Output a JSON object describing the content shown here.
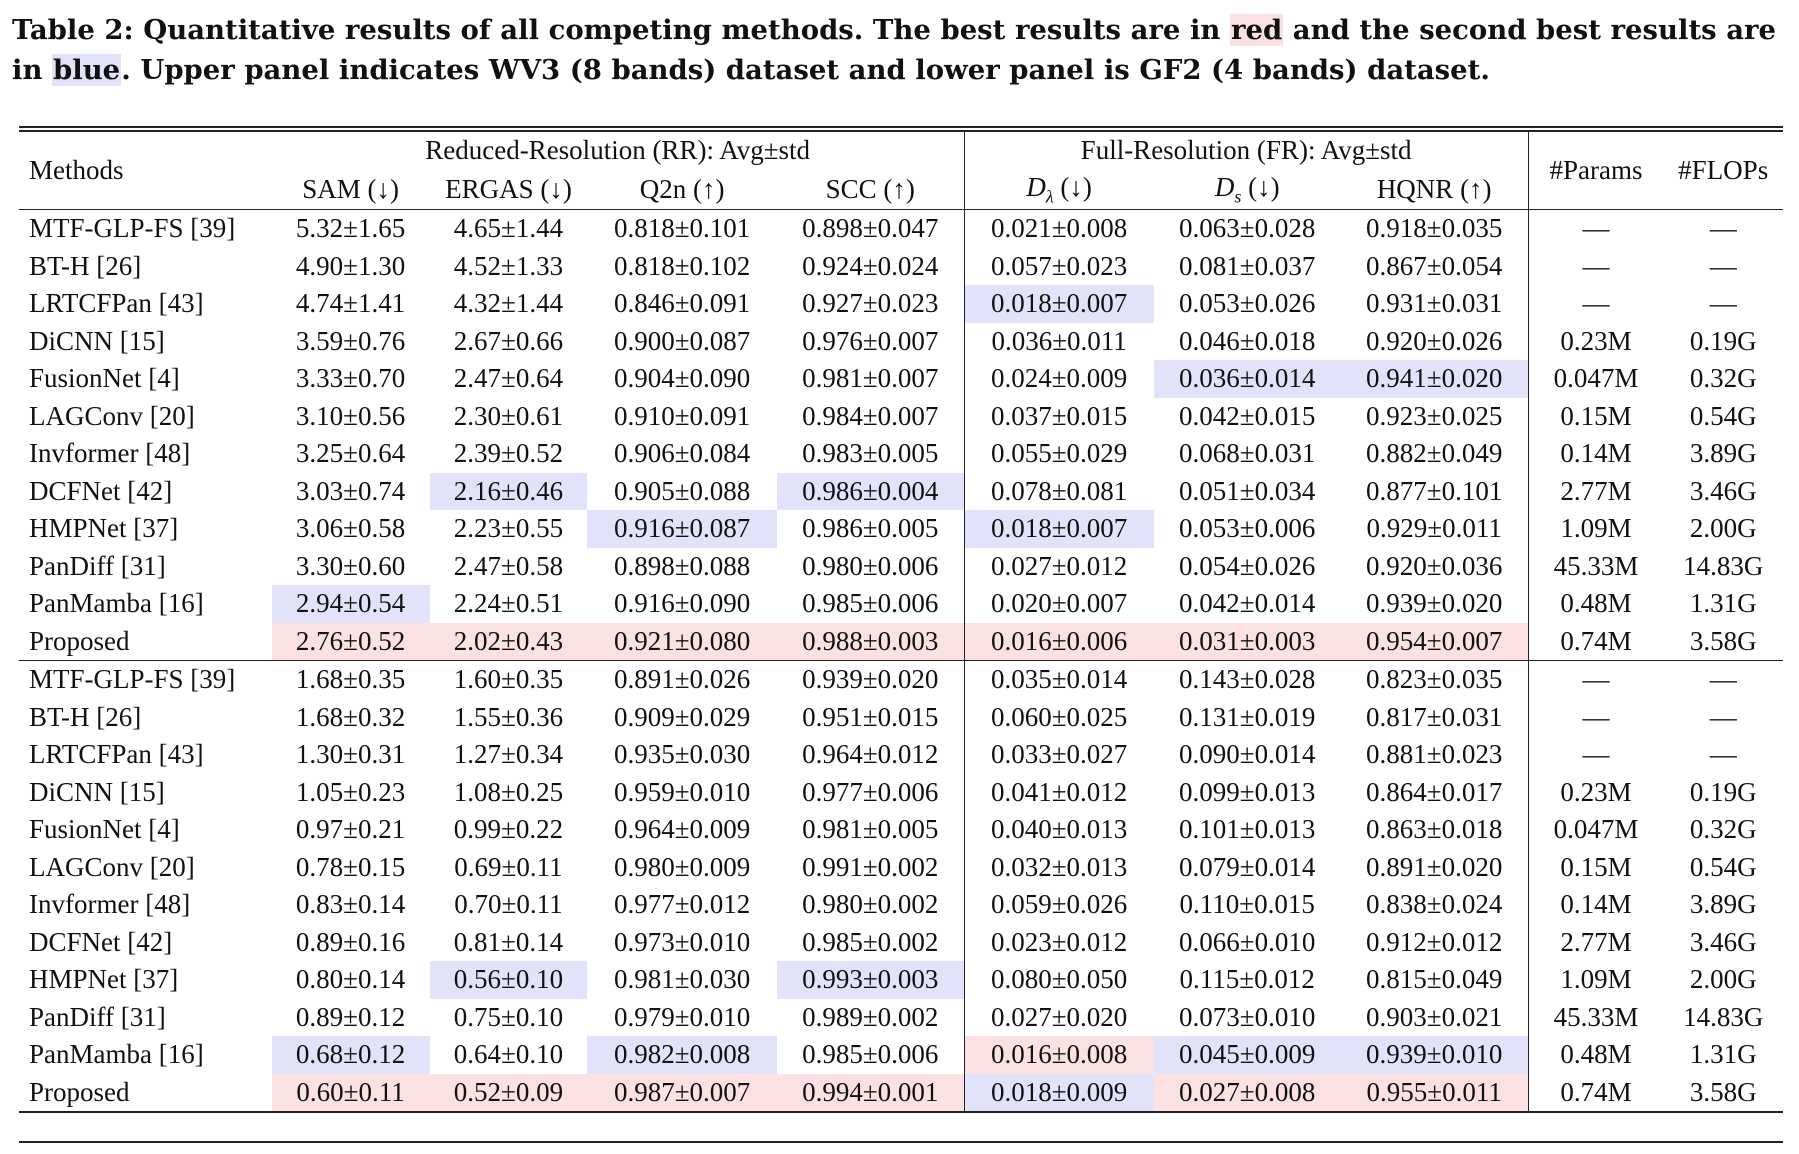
{
  "caption": {
    "part1": "Table 2: Quantitative results of all competing methods. The best results are in ",
    "red_word": "red",
    "part2": " and the second best results are in ",
    "blue_word": "blue",
    "part3": ". Upper panel indicates WV3 (8 bands) dataset and lower panel is GF2 (4 bands) dataset."
  },
  "colors": {
    "best_bg": "#fbe1e1",
    "second_bg": "#e2e3fb",
    "rule": "#222222"
  },
  "header": {
    "methods": "Methods",
    "rr_group": "Reduced-Resolution (RR): Avg±std",
    "fr_group": "Full-Resolution (FR): Avg±std",
    "params": "#Params",
    "flops": "#FLOPs",
    "cols": [
      "SAM (↓)",
      "ERGAS (↓)",
      "Q2n (↑)",
      "SCC (↑)"
    ],
    "d_lambda": {
      "sym": "D",
      "sub": "λ",
      "arrow": " (↓)"
    },
    "d_s": {
      "sym": "D",
      "sub": "s",
      "arrow": " (↓)"
    },
    "hqnr": "HQNR (↑)"
  },
  "panels": [
    {
      "dataset": "WV3 (8 bands)",
      "rows": [
        {
          "name": "MTF-GLP-FS [39]",
          "v": [
            "5.32±1.65",
            "4.65±1.44",
            "0.818±0.101",
            "0.898±0.047",
            "0.021±0.008",
            "0.063±0.028",
            "0.918±0.035",
            "—",
            "—"
          ],
          "hl": [
            "",
            "",
            "",
            "",
            "",
            "",
            "",
            "",
            ""
          ]
        },
        {
          "name": "BT-H [26]",
          "v": [
            "4.90±1.30",
            "4.52±1.33",
            "0.818±0.102",
            "0.924±0.024",
            "0.057±0.023",
            "0.081±0.037",
            "0.867±0.054",
            "—",
            "—"
          ],
          "hl": [
            "",
            "",
            "",
            "",
            "",
            "",
            "",
            "",
            ""
          ]
        },
        {
          "name": "LRTCFPan [43]",
          "v": [
            "4.74±1.41",
            "4.32±1.44",
            "0.846±0.091",
            "0.927±0.023",
            "0.018±0.007",
            "0.053±0.026",
            "0.931±0.031",
            "—",
            "—"
          ],
          "hl": [
            "",
            "",
            "",
            "",
            "second",
            "",
            "",
            "",
            ""
          ]
        },
        {
          "name": "DiCNN [15]",
          "v": [
            "3.59±0.76",
            "2.67±0.66",
            "0.900±0.087",
            "0.976±0.007",
            "0.036±0.011",
            "0.046±0.018",
            "0.920±0.026",
            "0.23M",
            "0.19G"
          ],
          "hl": [
            "",
            "",
            "",
            "",
            "",
            "",
            "",
            "",
            ""
          ]
        },
        {
          "name": "FusionNet [4]",
          "v": [
            "3.33±0.70",
            "2.47±0.64",
            "0.904±0.090",
            "0.981±0.007",
            "0.024±0.009",
            "0.036±0.014",
            "0.941±0.020",
            "0.047M",
            "0.32G"
          ],
          "hl": [
            "",
            "",
            "",
            "",
            "",
            "second",
            "second",
            "",
            ""
          ]
        },
        {
          "name": "LAGConv [20]",
          "v": [
            "3.10±0.56",
            "2.30±0.61",
            "0.910±0.091",
            "0.984±0.007",
            "0.037±0.015",
            "0.042±0.015",
            "0.923±0.025",
            "0.15M",
            "0.54G"
          ],
          "hl": [
            "",
            "",
            "",
            "",
            "",
            "",
            "",
            "",
            ""
          ]
        },
        {
          "name": "Invformer [48]",
          "v": [
            "3.25±0.64",
            "2.39±0.52",
            "0.906±0.084",
            "0.983±0.005",
            "0.055±0.029",
            "0.068±0.031",
            "0.882±0.049",
            "0.14M",
            "3.89G"
          ],
          "hl": [
            "",
            "",
            "",
            "",
            "",
            "",
            "",
            "",
            ""
          ]
        },
        {
          "name": "DCFNet [42]",
          "v": [
            "3.03±0.74",
            "2.16±0.46",
            "0.905±0.088",
            "0.986±0.004",
            "0.078±0.081",
            "0.051±0.034",
            "0.877±0.101",
            "2.77M",
            "3.46G"
          ],
          "hl": [
            "",
            "second",
            "",
            "second",
            "",
            "",
            "",
            "",
            ""
          ]
        },
        {
          "name": "HMPNet [37]",
          "v": [
            "3.06±0.58",
            "2.23±0.55",
            "0.916±0.087",
            "0.986±0.005",
            "0.018±0.007",
            "0.053±0.006",
            "0.929±0.011",
            "1.09M",
            "2.00G"
          ],
          "hl": [
            "",
            "",
            "second",
            "",
            "second",
            "",
            "",
            "",
            ""
          ]
        },
        {
          "name": "PanDiff [31]",
          "v": [
            "3.30±0.60",
            "2.47±0.58",
            "0.898±0.088",
            "0.980±0.006",
            "0.027±0.012",
            "0.054±0.026",
            "0.920±0.036",
            "45.33M",
            "14.83G"
          ],
          "hl": [
            "",
            "",
            "",
            "",
            "",
            "",
            "",
            "",
            ""
          ]
        },
        {
          "name": "PanMamba [16]",
          "v": [
            "2.94±0.54",
            "2.24±0.51",
            "0.916±0.090",
            "0.985±0.006",
            "0.020±0.007",
            "0.042±0.014",
            "0.939±0.020",
            "0.48M",
            "1.31G"
          ],
          "hl": [
            "second",
            "",
            "",
            "",
            "",
            "",
            "",
            "",
            ""
          ]
        },
        {
          "name": "Proposed",
          "v": [
            "2.76±0.52",
            "2.02±0.43",
            "0.921±0.080",
            "0.988±0.003",
            "0.016±0.006",
            "0.031±0.003",
            "0.954±0.007",
            "0.74M",
            "3.58G"
          ],
          "hl": [
            "best",
            "best",
            "best",
            "best",
            "best",
            "best",
            "best",
            "",
            ""
          ]
        }
      ]
    },
    {
      "dataset": "GF2 (4 bands)",
      "rows": [
        {
          "name": "MTF-GLP-FS [39]",
          "v": [
            "1.68±0.35",
            "1.60±0.35",
            "0.891±0.026",
            "0.939±0.020",
            "0.035±0.014",
            "0.143±0.028",
            "0.823±0.035",
            "—",
            "—"
          ],
          "hl": [
            "",
            "",
            "",
            "",
            "",
            "",
            "",
            "",
            ""
          ]
        },
        {
          "name": "BT-H [26]",
          "v": [
            "1.68±0.32",
            "1.55±0.36",
            "0.909±0.029",
            "0.951±0.015",
            "0.060±0.025",
            "0.131±0.019",
            "0.817±0.031",
            "—",
            "—"
          ],
          "hl": [
            "",
            "",
            "",
            "",
            "",
            "",
            "",
            "",
            ""
          ]
        },
        {
          "name": "LRTCFPan [43]",
          "v": [
            "1.30±0.31",
            "1.27±0.34",
            "0.935±0.030",
            "0.964±0.012",
            "0.033±0.027",
            "0.090±0.014",
            "0.881±0.023",
            "—",
            "—"
          ],
          "hl": [
            "",
            "",
            "",
            "",
            "",
            "",
            "",
            "",
            ""
          ]
        },
        {
          "name": "DiCNN [15]",
          "v": [
            "1.05±0.23",
            "1.08±0.25",
            "0.959±0.010",
            "0.977±0.006",
            "0.041±0.012",
            "0.099±0.013",
            "0.864±0.017",
            "0.23M",
            "0.19G"
          ],
          "hl": [
            "",
            "",
            "",
            "",
            "",
            "",
            "",
            "",
            ""
          ]
        },
        {
          "name": "FusionNet [4]",
          "v": [
            "0.97±0.21",
            "0.99±0.22",
            "0.964±0.009",
            "0.981±0.005",
            "0.040±0.013",
            "0.101±0.013",
            "0.863±0.018",
            "0.047M",
            "0.32G"
          ],
          "hl": [
            "",
            "",
            "",
            "",
            "",
            "",
            "",
            "",
            ""
          ]
        },
        {
          "name": "LAGConv [20]",
          "v": [
            "0.78±0.15",
            "0.69±0.11",
            "0.980±0.009",
            "0.991±0.002",
            "0.032±0.013",
            "0.079±0.014",
            "0.891±0.020",
            "0.15M",
            "0.54G"
          ],
          "hl": [
            "",
            "",
            "",
            "",
            "",
            "",
            "",
            "",
            ""
          ]
        },
        {
          "name": "Invformer [48]",
          "v": [
            "0.83±0.14",
            "0.70±0.11",
            "0.977±0.012",
            "0.980±0.002",
            "0.059±0.026",
            "0.110±0.015",
            "0.838±0.024",
            "0.14M",
            "3.89G"
          ],
          "hl": [
            "",
            "",
            "",
            "",
            "",
            "",
            "",
            "",
            ""
          ]
        },
        {
          "name": "DCFNet [42]",
          "v": [
            "0.89±0.16",
            "0.81±0.14",
            "0.973±0.010",
            "0.985±0.002",
            "0.023±0.012",
            "0.066±0.010",
            "0.912±0.012",
            "2.77M",
            "3.46G"
          ],
          "hl": [
            "",
            "",
            "",
            "",
            "",
            "",
            "",
            "",
            ""
          ]
        },
        {
          "name": "HMPNet [37]",
          "v": [
            "0.80±0.14",
            "0.56±0.10",
            "0.981±0.030",
            "0.993±0.003",
            "0.080±0.050",
            "0.115±0.012",
            "0.815±0.049",
            "1.09M",
            "2.00G"
          ],
          "hl": [
            "",
            "second",
            "",
            "second",
            "",
            "",
            "",
            "",
            ""
          ]
        },
        {
          "name": "PanDiff [31]",
          "v": [
            "0.89±0.12",
            "0.75±0.10",
            "0.979±0.010",
            "0.989±0.002",
            "0.027±0.020",
            "0.073±0.010",
            "0.903±0.021",
            "45.33M",
            "14.83G"
          ],
          "hl": [
            "",
            "",
            "",
            "",
            "",
            "",
            "",
            "",
            ""
          ]
        },
        {
          "name": "PanMamba [16]",
          "v": [
            "0.68±0.12",
            "0.64±0.10",
            "0.982±0.008",
            "0.985±0.006",
            "0.016±0.008",
            "0.045±0.009",
            "0.939±0.010",
            "0.48M",
            "1.31G"
          ],
          "hl": [
            "second",
            "",
            "second",
            "",
            "best",
            "second",
            "second",
            "",
            ""
          ]
        },
        {
          "name": "Proposed",
          "v": [
            "0.60±0.11",
            "0.52±0.09",
            "0.987±0.007",
            "0.994±0.001",
            "0.018±0.009",
            "0.027±0.008",
            "0.955±0.011",
            "0.74M",
            "3.58G"
          ],
          "hl": [
            "best",
            "best",
            "best",
            "best",
            "second",
            "best",
            "best",
            "",
            ""
          ]
        }
      ]
    }
  ]
}
